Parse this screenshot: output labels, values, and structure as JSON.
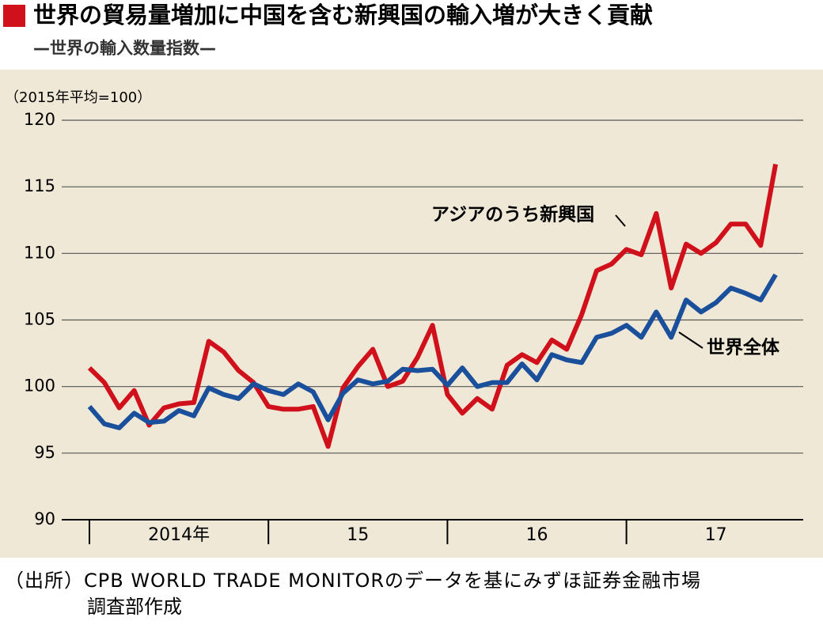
{
  "chart_data": {
    "type": "line",
    "title": "世界の貿易量増加に中国を含む新興国の輸入増が大きく貢献",
    "subtitle": "—世界の輸入数量指数—",
    "unit_label": "（2015年平均=100）",
    "categories": [
      null,
      null,
      null,
      null,
      null,
      null,
      null,
      null,
      null,
      null,
      null,
      null,
      null,
      null,
      null,
      null,
      null,
      null,
      null,
      null,
      null,
      null,
      null,
      null,
      null,
      null,
      null,
      null,
      null,
      null,
      null,
      null,
      null,
      null,
      null,
      null,
      null,
      null,
      null,
      null,
      null,
      null,
      null,
      null,
      null,
      null,
      null
    ],
    "year_labels": [
      "2014年",
      "15",
      "16",
      "17"
    ],
    "series": [
      {
        "name": "アジアのうち新興国",
        "color": "#d0101b",
        "values": [
          101.4,
          100.3,
          98.4,
          99.7,
          97.1,
          98.4,
          98.7,
          98.8,
          103.4,
          102.6,
          101.2,
          100.3,
          98.5,
          98.3,
          98.3,
          98.5,
          95.5,
          99.9,
          101.5,
          102.8,
          100.0,
          100.4,
          102.2,
          104.6,
          99.4,
          98.0,
          99.1,
          98.3,
          101.6,
          102.4,
          101.8,
          103.5,
          102.8,
          105.4,
          108.7,
          109.2,
          110.3,
          109.9,
          113.0,
          107.4,
          110.7,
          110.0,
          110.8,
          112.2,
          112.2,
          110.6,
          116.7
        ]
      },
      {
        "name": "世界全体",
        "color": "#1a4f9c",
        "values": [
          98.5,
          97.2,
          96.9,
          98.0,
          97.3,
          97.4,
          98.2,
          97.8,
          99.9,
          99.4,
          99.1,
          100.2,
          99.7,
          99.4,
          100.2,
          99.6,
          97.5,
          99.5,
          100.5,
          100.2,
          100.4,
          101.3,
          101.2,
          101.3,
          100.1,
          101.4,
          100.0,
          100.3,
          100.3,
          101.7,
          100.5,
          102.4,
          102.0,
          101.8,
          103.7,
          104.0,
          104.6,
          103.7,
          105.6,
          103.7,
          106.5,
          105.6,
          106.3,
          107.4,
          107.0,
          106.5,
          108.4
        ]
      }
    ],
    "ylim": [
      90,
      120
    ],
    "yticks": [
      90,
      95,
      100,
      105,
      110,
      115,
      120
    ],
    "grid": true,
    "source": [
      "（出所）CPB WORLD TRADE MONITORのデータを基にみずほ証券金融市場",
      "調査部作成"
    ]
  }
}
